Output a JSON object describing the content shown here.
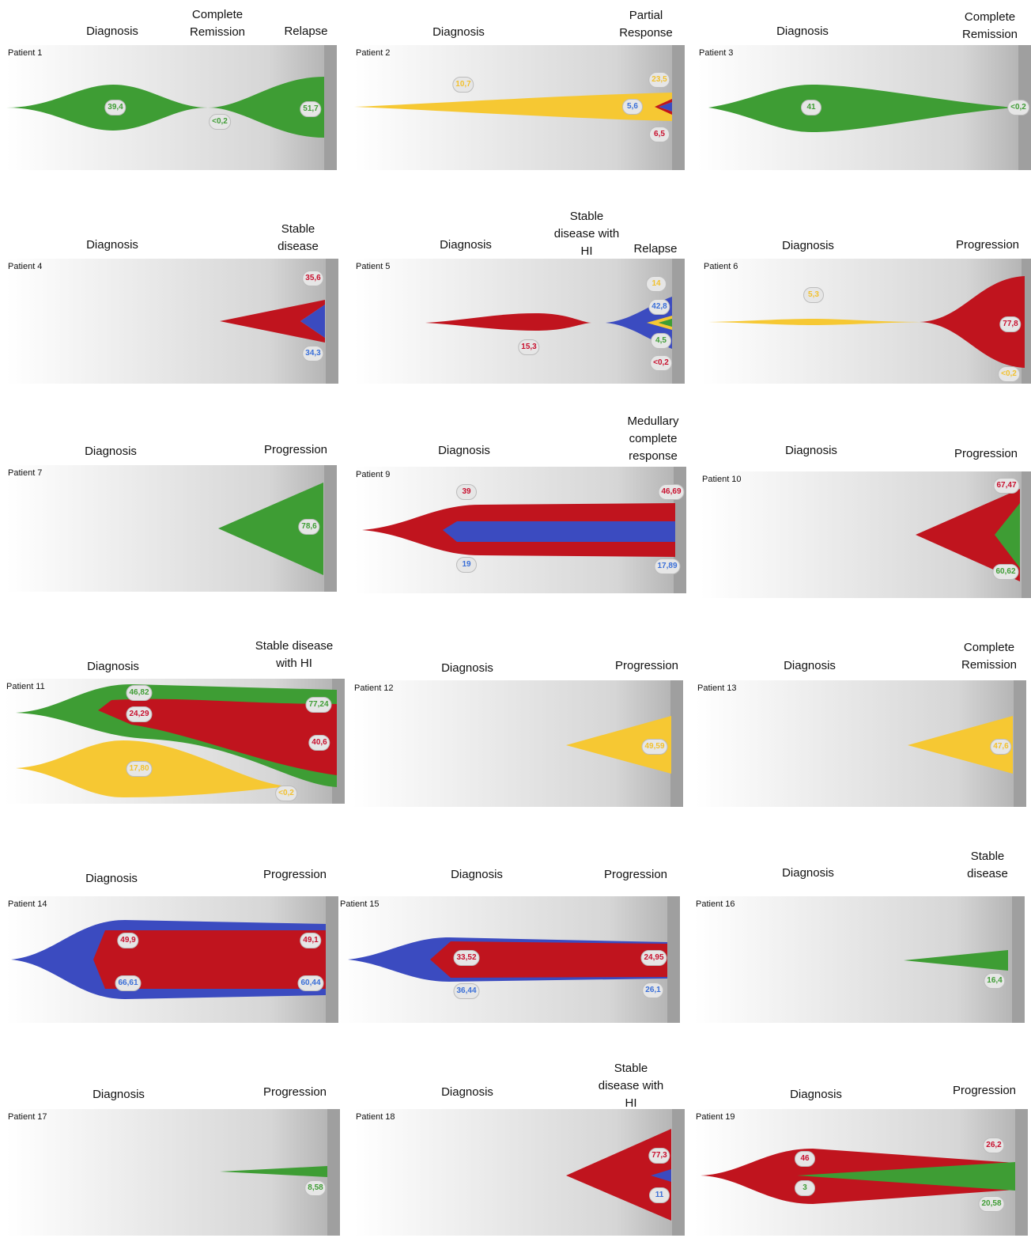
{
  "colors": {
    "red": "#c0141e",
    "blue": "#3b4bc0",
    "green": "#3e9d34",
    "yellow": "#f6c833"
  },
  "panels": [
    {
      "label": "Patient 1",
      "headers": [
        "Diagnosis",
        "Complete\nRemission",
        "Relapse"
      ],
      "values": [
        {
          "text": "39,4",
          "color": "green"
        },
        {
          "text": "<0,2",
          "color": "green"
        },
        {
          "text": "51,7",
          "color": "green"
        }
      ]
    },
    {
      "label": "Patient 2",
      "headers": [
        "Diagnosis",
        "Partial\nResponse"
      ],
      "values": [
        {
          "text": "10,7",
          "color": "yellow"
        },
        {
          "text": "23,5",
          "color": "yellow"
        },
        {
          "text": "5,6",
          "color": "blue"
        },
        {
          "text": "6,5",
          "color": "red"
        }
      ]
    },
    {
      "label": "Patient 3",
      "headers": [
        "Diagnosis",
        "Complete\nRemission"
      ],
      "values": [
        {
          "text": "41",
          "color": "green"
        },
        {
          "text": "<0,2",
          "color": "green"
        }
      ]
    },
    {
      "label": "Patient 4",
      "headers": [
        "Diagnosis",
        "Stable\ndisease"
      ],
      "values": [
        {
          "text": "35,6",
          "color": "red"
        },
        {
          "text": "34,3",
          "color": "blue"
        }
      ]
    },
    {
      "label": "Patient 5",
      "headers": [
        "Diagnosis",
        "Stable\ndisease with\nHI",
        "Relapse"
      ],
      "values": [
        {
          "text": "15,3",
          "color": "red"
        },
        {
          "text": "14",
          "color": "yellow"
        },
        {
          "text": "42,8",
          "color": "blue"
        },
        {
          "text": "4,5",
          "color": "green"
        },
        {
          "text": "<0,2",
          "color": "red"
        }
      ]
    },
    {
      "label": "Patient 6",
      "headers": [
        "Diagnosis",
        "Progression"
      ],
      "values": [
        {
          "text": "5,3",
          "color": "yellow"
        },
        {
          "text": "77,8",
          "color": "red"
        },
        {
          "text": "<0,2",
          "color": "yellow"
        }
      ]
    },
    {
      "label": "Patient 7",
      "headers": [
        "Diagnosis",
        "Progression"
      ],
      "values": [
        {
          "text": "78,6",
          "color": "green"
        }
      ]
    },
    {
      "label": "Patient 9",
      "headers": [
        "Diagnosis",
        "Medullary\ncomplete\nresponse"
      ],
      "values": [
        {
          "text": "39",
          "color": "red"
        },
        {
          "text": "19",
          "color": "blue"
        },
        {
          "text": "46,69",
          "color": "red"
        },
        {
          "text": "17,89",
          "color": "blue"
        }
      ]
    },
    {
      "label": "Patient 10",
      "headers": [
        "Diagnosis",
        "Progression"
      ],
      "values": [
        {
          "text": "67,47",
          "color": "red"
        },
        {
          "text": "60,62",
          "color": "green"
        }
      ]
    },
    {
      "label": "Patient 11",
      "headers": [
        "Diagnosis",
        "Stable disease\nwith HI"
      ],
      "values": [
        {
          "text": "46,82",
          "color": "green"
        },
        {
          "text": "24,29",
          "color": "red"
        },
        {
          "text": "17,80",
          "color": "yellow"
        },
        {
          "text": "77,24",
          "color": "green"
        },
        {
          "text": "40,6",
          "color": "red"
        },
        {
          "text": "<0,2",
          "color": "yellow"
        }
      ]
    },
    {
      "label": "Patient 12",
      "headers": [
        "Diagnosis",
        "Progression"
      ],
      "values": [
        {
          "text": "49,59",
          "color": "yellow"
        }
      ]
    },
    {
      "label": "Patient 13",
      "headers": [
        "Diagnosis",
        "Complete\nRemission"
      ],
      "values": [
        {
          "text": "47,6",
          "color": "yellow"
        }
      ]
    },
    {
      "label": "Patient 14",
      "headers": [
        "Diagnosis",
        "Progression"
      ],
      "values": [
        {
          "text": "49,9",
          "color": "red"
        },
        {
          "text": "66,61",
          "color": "blue"
        },
        {
          "text": "49,1",
          "color": "red"
        },
        {
          "text": "60,44",
          "color": "blue"
        }
      ]
    },
    {
      "label": "Patient 15",
      "headers": [
        "Diagnosis",
        "Progression"
      ],
      "values": [
        {
          "text": "33,52",
          "color": "red"
        },
        {
          "text": "36,44",
          "color": "blue"
        },
        {
          "text": "24,95",
          "color": "red"
        },
        {
          "text": "26,1",
          "color": "blue"
        }
      ]
    },
    {
      "label": "Patient 16",
      "headers": [
        "Diagnosis",
        "Stable\ndisease"
      ],
      "values": [
        {
          "text": "16,4",
          "color": "green"
        }
      ]
    },
    {
      "label": "Patient 17",
      "headers": [
        "Diagnosis",
        "Progression"
      ],
      "values": [
        {
          "text": "8,58",
          "color": "green"
        }
      ]
    },
    {
      "label": "Patient 18",
      "headers": [
        "Diagnosis",
        "Stable\ndisease with\nHI"
      ],
      "values": [
        {
          "text": "77,3",
          "color": "red"
        },
        {
          "text": "11",
          "color": "blue"
        }
      ]
    },
    {
      "label": "Patient 19",
      "headers": [
        "Diagnosis",
        "Progression"
      ],
      "values": [
        {
          "text": "46",
          "color": "red"
        },
        {
          "text": "3",
          "color": "green"
        },
        {
          "text": "26,2",
          "color": "red"
        },
        {
          "text": "20,58",
          "color": "green"
        }
      ]
    }
  ]
}
